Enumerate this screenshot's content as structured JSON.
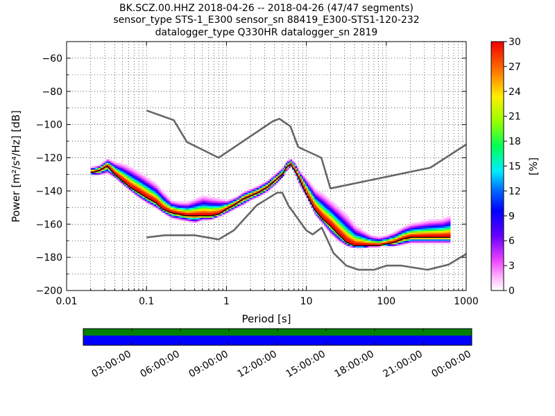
{
  "title_lines": [
    "BK.SCZ.00.HHZ   2018-04-26 -- 2018-04-26  (47/47 segments)",
    "sensor_type STS-1_E300 sensor_sn 88419_E300-STS1-120-232",
    "datalogger_type Q330HR datalogger_sn 2819"
  ],
  "chart_data": {
    "type": "heatmap",
    "xlabel": "Period [s]",
    "ylabel": "Power [m²/s⁴/Hz] [dB]",
    "xscale": "log",
    "xlim": [
      0.01,
      1000
    ],
    "ylim": [
      -200,
      -50
    ],
    "x_ticks": [
      "0.01",
      "0.1",
      "1",
      "10",
      "100",
      "1000"
    ],
    "y_ticks": [
      "−60",
      "−80",
      "−100",
      "−120",
      "−140",
      "−160",
      "−180",
      "−200"
    ],
    "grid": true,
    "colorbar": {
      "label": "[%]",
      "range": [
        0,
        30
      ],
      "ticks": [
        "0",
        "3",
        "6",
        "9",
        "12",
        "15",
        "18",
        "21",
        "24",
        "27",
        "30"
      ]
    },
    "noise_model_high": {
      "x": [
        0.1,
        0.22,
        0.32,
        0.8,
        3.8,
        4.6,
        6.3,
        7.9,
        15.4,
        20,
        354.8,
        1000
      ],
      "y": [
        -91.5,
        -97.4,
        -110.5,
        -120,
        -98,
        -96.5,
        -101,
        -113.5,
        -120,
        -138.5,
        -126,
        -112
      ]
    },
    "noise_model_low": {
      "x": [
        0.1,
        0.17,
        0.4,
        0.8,
        1.24,
        2.4,
        4.3,
        5,
        6,
        10,
        12,
        15.6,
        21.9,
        31.6,
        45,
        70,
        101,
        154,
        328,
        600,
        1000
      ],
      "y": [
        -168,
        -166.7,
        -166.7,
        -169.2,
        -163.7,
        -148.6,
        -141.1,
        -141.1,
        -149,
        -163.8,
        -166.2,
        -162.1,
        -177.5,
        -185,
        -187.5,
        -187.5,
        -185,
        -185,
        -187.5,
        -184.4,
        -178
      ]
    },
    "median_psd": {
      "x": [
        0.02,
        0.025,
        0.032,
        0.04,
        0.05,
        0.063,
        0.08,
        0.1,
        0.13,
        0.16,
        0.2,
        0.25,
        0.32,
        0.4,
        0.5,
        0.63,
        0.8,
        1,
        1.3,
        1.6,
        2,
        2.5,
        3.2,
        4,
        5,
        5.6,
        6.3,
        7,
        8,
        10,
        12.6,
        16,
        20,
        25,
        32,
        40,
        50,
        63,
        80,
        100,
        126,
        160,
        200,
        320,
        500,
        630
      ],
      "y": [
        -129,
        -128,
        -125,
        -130,
        -134,
        -138,
        -141,
        -144,
        -147,
        -151,
        -153,
        -154,
        -155,
        -155,
        -155,
        -155,
        -154,
        -151,
        -148,
        -145,
        -143,
        -141,
        -138,
        -134,
        -130,
        -126,
        -124,
        -127,
        -132,
        -142,
        -151,
        -157,
        -161,
        -166,
        -171,
        -173,
        -173,
        -173,
        -173,
        -172,
        -171,
        -169,
        -168,
        -168,
        -168,
        -168
      ]
    },
    "psd_spread": {
      "x": [
        0.02,
        0.025,
        0.032,
        0.04,
        0.05,
        0.063,
        0.08,
        0.1,
        0.13,
        0.16,
        0.2,
        0.25,
        0.32,
        0.4,
        0.5,
        0.63,
        0.8,
        1,
        1.3,
        1.6,
        2,
        2.5,
        3.2,
        4,
        5,
        5.6,
        6.3,
        7,
        8,
        10,
        12.6,
        16,
        20,
        25,
        32,
        40,
        50,
        63,
        80,
        100,
        126,
        160,
        200,
        320,
        500,
        630
      ],
      "upper": [
        -126,
        -125,
        -121,
        -123,
        -124,
        -126,
        -129,
        -132,
        -136,
        -141,
        -146,
        -147,
        -147,
        -145,
        -143,
        -144,
        -145,
        -146,
        -144,
        -141,
        -139,
        -137,
        -134,
        -130,
        -126,
        -122,
        -121,
        -123,
        -128,
        -133,
        -139,
        -142,
        -146,
        -150,
        -155,
        -161,
        -164,
        -167,
        -168,
        -167,
        -165,
        -162,
        -160,
        -158,
        -157,
        -155
      ],
      "lower": [
        -131,
        -131,
        -130,
        -133,
        -137,
        -141,
        -145,
        -148,
        -151,
        -154,
        -157,
        -158,
        -159,
        -160,
        -158,
        -158,
        -156,
        -154,
        -151,
        -149,
        -146,
        -144,
        -141,
        -137,
        -132,
        -128,
        -126,
        -130,
        -137,
        -145,
        -155,
        -161,
        -167,
        -171,
        -174,
        -175,
        -175,
        -174,
        -174,
        -174,
        -174,
        -173,
        -172,
        -172,
        -172,
        -172
      ]
    },
    "timeline": {
      "ticks": [
        "03:00:00",
        "06:00:00",
        "09:00:00",
        "12:00:00",
        "15:00:00",
        "18:00:00",
        "21:00:00",
        "00:00:00"
      ],
      "coverage_color": "#0000ff",
      "segments_color": "#008000"
    },
    "colors": {
      "noise_model": "#666666",
      "median": "#000000"
    }
  }
}
